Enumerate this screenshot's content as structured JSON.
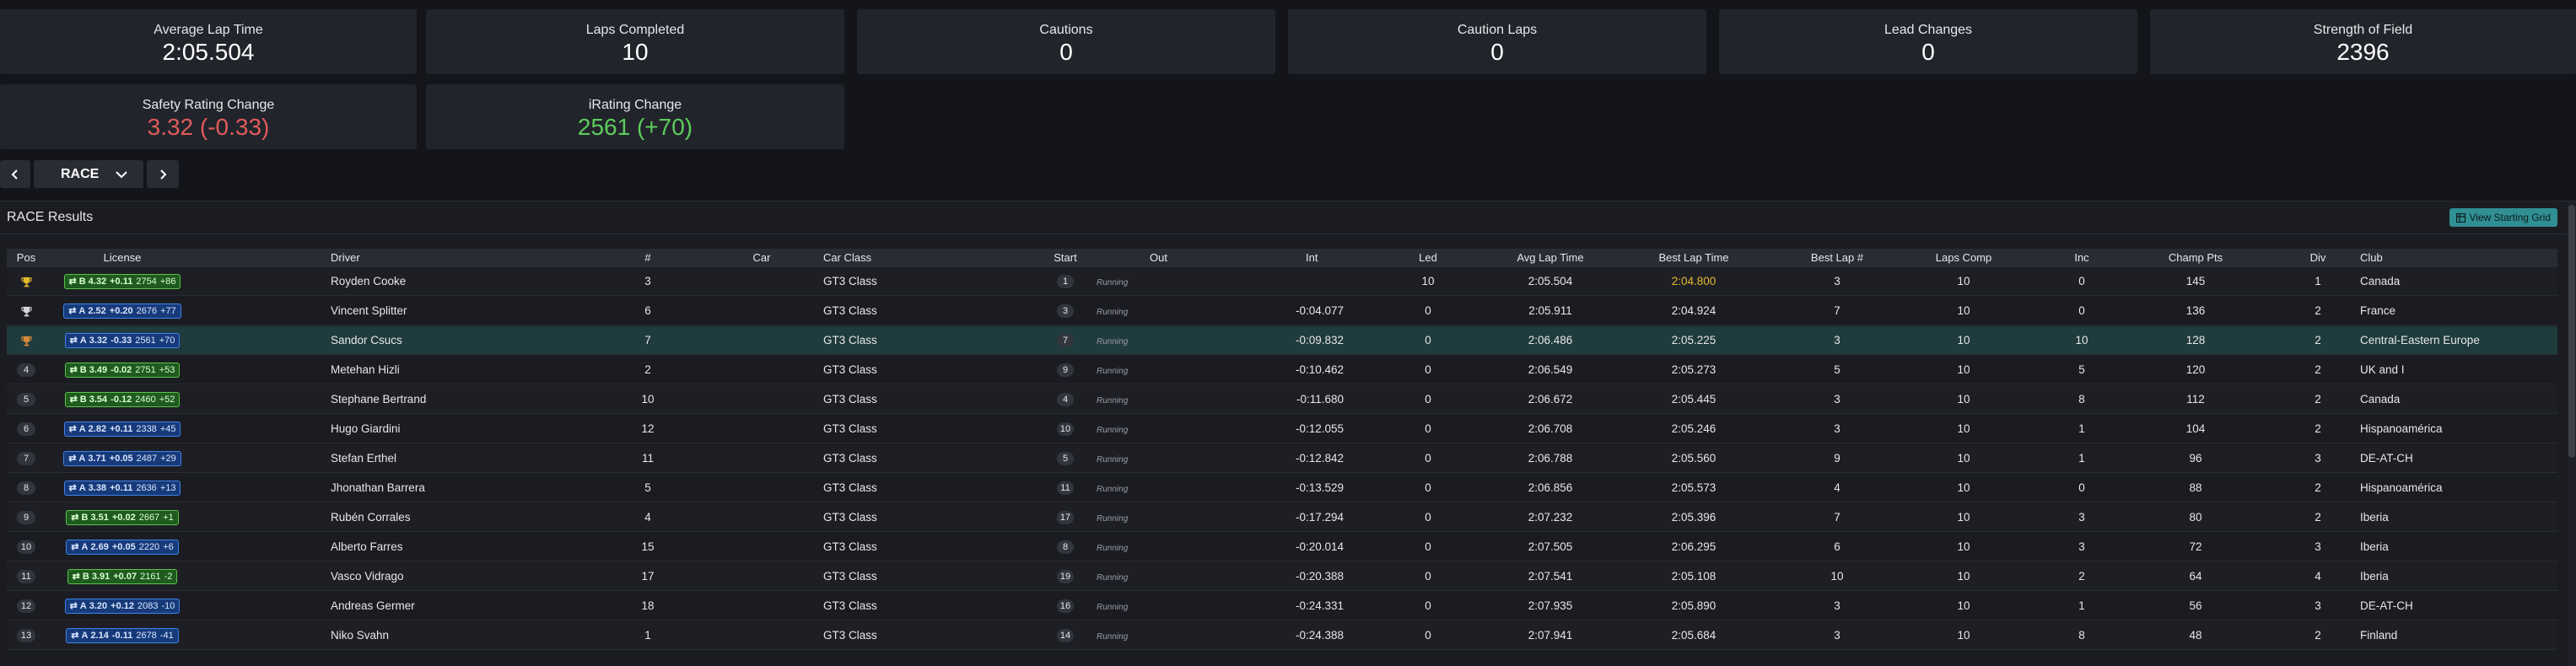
{
  "stats": [
    {
      "label": "Average Lap Time",
      "value": "2:05.504"
    },
    {
      "label": "Laps Completed",
      "value": "10"
    },
    {
      "label": "Cautions",
      "value": "0"
    },
    {
      "label": "Caution Laps",
      "value": "0"
    },
    {
      "label": "Lead Changes",
      "value": "0"
    },
    {
      "label": "Strength of Field",
      "value": "2396"
    },
    {
      "label": "Safety Rating Change",
      "value": "3.32 (-0.33)"
    },
    {
      "label": "iRating Change",
      "value": "2561 (+70)"
    }
  ],
  "session": {
    "selected": "RACE"
  },
  "results": {
    "title": "RACE Results",
    "starting_grid_button": "View Starting Grid",
    "columns": [
      "Pos",
      "License",
      "Driver",
      "#",
      "Car",
      "Car Class",
      "Start",
      "Out",
      "Int",
      "Led",
      "Avg Lap Time",
      "Best Lap Time",
      "Best Lap #",
      "Laps Comp",
      "Inc",
      "Champ Pts",
      "Div",
      "Club"
    ],
    "rows": [
      {
        "pos": "trophy-gold",
        "lic_class": "B",
        "lic_sr": "4.32",
        "lic_srd": "+0.11",
        "lic_ir": "2754",
        "lic_ird": "+86",
        "driver": "Royden Cooke",
        "num": "3",
        "car": "",
        "carclass": "GT3 Class",
        "start": "1",
        "out": "Running",
        "int": "",
        "led": "10",
        "avg": "2:05.504",
        "best": "2:04.800",
        "bestlap": "3",
        "laps": "10",
        "inc": "0",
        "pts": "145",
        "div": "1",
        "club": "Canada"
      },
      {
        "pos": "trophy-silver",
        "lic_class": "A",
        "lic_sr": "2.52",
        "lic_srd": "+0.20",
        "lic_ir": "2676",
        "lic_ird": "+77",
        "driver": "Vincent Splitter",
        "num": "6",
        "car": "",
        "carclass": "GT3 Class",
        "start": "3",
        "out": "Running",
        "int": "-0:04.077",
        "led": "0",
        "avg": "2:05.911",
        "best": "2:04.924",
        "bestlap": "7",
        "laps": "10",
        "inc": "0",
        "pts": "136",
        "div": "2",
        "club": "France"
      },
      {
        "pos": "trophy-bronze",
        "lic_class": "A",
        "lic_sr": "3.32",
        "lic_srd": "-0.33",
        "lic_ir": "2561",
        "lic_ird": "+70",
        "driver": "Sandor Csucs",
        "num": "7",
        "car": "",
        "carclass": "GT3 Class",
        "start": "7",
        "out": "Running",
        "int": "-0:09.832",
        "led": "0",
        "avg": "2:06.486",
        "best": "2:05.225",
        "bestlap": "3",
        "laps": "10",
        "inc": "10",
        "pts": "128",
        "div": "2",
        "club": "Central-Eastern Europe"
      },
      {
        "pos": "4",
        "lic_class": "B",
        "lic_sr": "3.49",
        "lic_srd": "-0.02",
        "lic_ir": "2751",
        "lic_ird": "+53",
        "driver": "Metehan Hizli",
        "num": "2",
        "car": "",
        "carclass": "GT3 Class",
        "start": "9",
        "out": "Running",
        "int": "-0:10.462",
        "led": "0",
        "avg": "2:06.549",
        "best": "2:05.273",
        "bestlap": "5",
        "laps": "10",
        "inc": "5",
        "pts": "120",
        "div": "2",
        "club": "UK and I"
      },
      {
        "pos": "5",
        "lic_class": "B",
        "lic_sr": "3.54",
        "lic_srd": "-0.12",
        "lic_ir": "2460",
        "lic_ird": "+52",
        "driver": "Stephane Bertrand",
        "num": "10",
        "car": "",
        "carclass": "GT3 Class",
        "start": "4",
        "out": "Running",
        "int": "-0:11.680",
        "led": "0",
        "avg": "2:06.672",
        "best": "2:05.445",
        "bestlap": "3",
        "laps": "10",
        "inc": "8",
        "pts": "112",
        "div": "2",
        "club": "Canada"
      },
      {
        "pos": "6",
        "lic_class": "A",
        "lic_sr": "2.82",
        "lic_srd": "+0.11",
        "lic_ir": "2338",
        "lic_ird": "+45",
        "driver": "Hugo Giardini",
        "num": "12",
        "car": "",
        "carclass": "GT3 Class",
        "start": "10",
        "out": "Running",
        "int": "-0:12.055",
        "led": "0",
        "avg": "2:06.708",
        "best": "2:05.246",
        "bestlap": "3",
        "laps": "10",
        "inc": "1",
        "pts": "104",
        "div": "2",
        "club": "Hispanoamérica"
      },
      {
        "pos": "7",
        "lic_class": "A",
        "lic_sr": "3.71",
        "lic_srd": "+0.05",
        "lic_ir": "2487",
        "lic_ird": "+29",
        "driver": "Stefan Erthel",
        "num": "11",
        "car": "",
        "carclass": "GT3 Class",
        "start": "5",
        "out": "Running",
        "int": "-0:12.842",
        "led": "0",
        "avg": "2:06.788",
        "best": "2:05.560",
        "bestlap": "9",
        "laps": "10",
        "inc": "1",
        "pts": "96",
        "div": "3",
        "club": "DE-AT-CH"
      },
      {
        "pos": "8",
        "lic_class": "A",
        "lic_sr": "3.38",
        "lic_srd": "+0.11",
        "lic_ir": "2636",
        "lic_ird": "+13",
        "driver": "Jhonathan Barrera",
        "num": "5",
        "car": "",
        "carclass": "GT3 Class",
        "start": "11",
        "out": "Running",
        "int": "-0:13.529",
        "led": "0",
        "avg": "2:06.856",
        "best": "2:05.573",
        "bestlap": "4",
        "laps": "10",
        "inc": "0",
        "pts": "88",
        "div": "2",
        "club": "Hispanoamérica"
      },
      {
        "pos": "9",
        "lic_class": "B",
        "lic_sr": "3.51",
        "lic_srd": "+0.02",
        "lic_ir": "2667",
        "lic_ird": "+1",
        "driver": "Rubén Corrales",
        "num": "4",
        "car": "",
        "carclass": "GT3 Class",
        "start": "17",
        "out": "Running",
        "int": "-0:17.294",
        "led": "0",
        "avg": "2:07.232",
        "best": "2:05.396",
        "bestlap": "7",
        "laps": "10",
        "inc": "3",
        "pts": "80",
        "div": "2",
        "club": "Iberia"
      },
      {
        "pos": "10",
        "lic_class": "A",
        "lic_sr": "2.69",
        "lic_srd": "+0.05",
        "lic_ir": "2220",
        "lic_ird": "+6",
        "driver": "Alberto Farres",
        "num": "15",
        "car": "",
        "carclass": "GT3 Class",
        "start": "8",
        "out": "Running",
        "int": "-0:20.014",
        "led": "0",
        "avg": "2:07.505",
        "best": "2:06.295",
        "bestlap": "6",
        "laps": "10",
        "inc": "3",
        "pts": "72",
        "div": "3",
        "club": "Iberia"
      },
      {
        "pos": "11",
        "lic_class": "B",
        "lic_sr": "3.91",
        "lic_srd": "+0.07",
        "lic_ir": "2161",
        "lic_ird": "-2",
        "driver": "Vasco Vidrago",
        "num": "17",
        "car": "",
        "carclass": "GT3 Class",
        "start": "19",
        "out": "Running",
        "int": "-0:20.388",
        "led": "0",
        "avg": "2:07.541",
        "best": "2:05.108",
        "bestlap": "10",
        "laps": "10",
        "inc": "2",
        "pts": "64",
        "div": "4",
        "club": "Iberia"
      },
      {
        "pos": "12",
        "lic_class": "A",
        "lic_sr": "3.20",
        "lic_srd": "+0.12",
        "lic_ir": "2083",
        "lic_ird": "-10",
        "driver": "Andreas Germer",
        "num": "18",
        "car": "",
        "carclass": "GT3 Class",
        "start": "16",
        "out": "Running",
        "int": "-0:24.331",
        "led": "0",
        "avg": "2:07.935",
        "best": "2:05.890",
        "bestlap": "3",
        "laps": "10",
        "inc": "1",
        "pts": "56",
        "div": "3",
        "club": "DE-AT-CH"
      },
      {
        "pos": "13",
        "lic_class": "A",
        "lic_sr": "2.14",
        "lic_srd": "-0.11",
        "lic_ir": "2678",
        "lic_ird": "-41",
        "driver": "Niko Svahn",
        "num": "1",
        "car": "",
        "carclass": "GT3 Class",
        "start": "14",
        "out": "Running",
        "int": "-0:24.388",
        "led": "0",
        "avg": "2:07.941",
        "best": "2:05.684",
        "bestlap": "3",
        "laps": "10",
        "inc": "8",
        "pts": "48",
        "div": "2",
        "club": "Finland"
      }
    ]
  },
  "colors": {
    "bg": "#14151a",
    "card": "#22242b",
    "accent": "#2f8f92",
    "negative": "#e05b5b",
    "positive": "#5ccc5c",
    "best_lap": "#e7b92c",
    "selected_row": "#1f3b3d"
  }
}
